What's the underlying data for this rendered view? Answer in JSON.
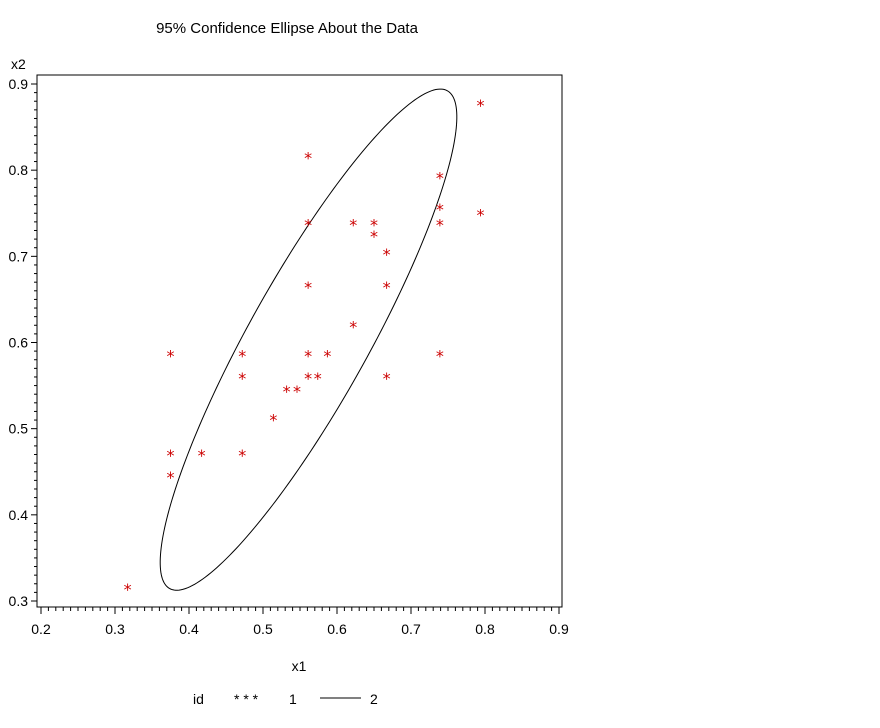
{
  "chart_data": {
    "type": "scatter",
    "title": "95% Confidence Ellipse About the Data",
    "xlabel": "x1",
    "ylabel": "x2",
    "xlim": [
      0.2,
      0.9
    ],
    "ylim": [
      0.3,
      0.9
    ],
    "xticks": [
      "0.2",
      "0.3",
      "0.4",
      "0.5",
      "0.6",
      "0.7",
      "0.8",
      "0.9"
    ],
    "yticks": [
      "0.3",
      "0.4",
      "0.5",
      "0.6",
      "0.7",
      "0.8",
      "0.9"
    ],
    "grid": false,
    "legend": {
      "title": "id",
      "position": "bottom",
      "entries": [
        {
          "label": "1",
          "symbol": "* * *",
          "marker": "asterisk",
          "color": "#cc0000"
        },
        {
          "label": "2",
          "symbol": "line",
          "marker": "line",
          "color": "#000000"
        }
      ]
    },
    "series": [
      {
        "label": "1",
        "marker": "asterisk",
        "color": "#cc0000",
        "points": [
          {
            "x": 0.317,
            "y": 0.316
          },
          {
            "x": 0.375,
            "y": 0.587
          },
          {
            "x": 0.375,
            "y": 0.472
          },
          {
            "x": 0.375,
            "y": 0.446
          },
          {
            "x": 0.417,
            "y": 0.472
          },
          {
            "x": 0.472,
            "y": 0.587
          },
          {
            "x": 0.472,
            "y": 0.561
          },
          {
            "x": 0.472,
            "y": 0.472
          },
          {
            "x": 0.514,
            "y": 0.513
          },
          {
            "x": 0.532,
            "y": 0.546
          },
          {
            "x": 0.546,
            "y": 0.546
          },
          {
            "x": 0.561,
            "y": 0.817
          },
          {
            "x": 0.561,
            "y": 0.739
          },
          {
            "x": 0.561,
            "y": 0.667
          },
          {
            "x": 0.561,
            "y": 0.587
          },
          {
            "x": 0.561,
            "y": 0.561
          },
          {
            "x": 0.574,
            "y": 0.561
          },
          {
            "x": 0.587,
            "y": 0.587
          },
          {
            "x": 0.622,
            "y": 0.739
          },
          {
            "x": 0.622,
            "y": 0.621
          },
          {
            "x": 0.65,
            "y": 0.739
          },
          {
            "x": 0.65,
            "y": 0.726
          },
          {
            "x": 0.667,
            "y": 0.705
          },
          {
            "x": 0.667,
            "y": 0.667
          },
          {
            "x": 0.667,
            "y": 0.561
          },
          {
            "x": 0.739,
            "y": 0.794
          },
          {
            "x": 0.739,
            "y": 0.757
          },
          {
            "x": 0.739,
            "y": 0.739
          },
          {
            "x": 0.739,
            "y": 0.587
          },
          {
            "x": 0.794,
            "y": 0.878
          },
          {
            "x": 0.794,
            "y": 0.751
          }
        ]
      },
      {
        "label": "2",
        "type": "ellipse",
        "color": "#000000",
        "center": {
          "x": 0.5615,
          "y": 0.6033
        },
        "major_axis_angle_deg": 56.6,
        "semi_axes_data": {
          "major": 0.3446,
          "minor": 0.0775
        }
      }
    ]
  }
}
